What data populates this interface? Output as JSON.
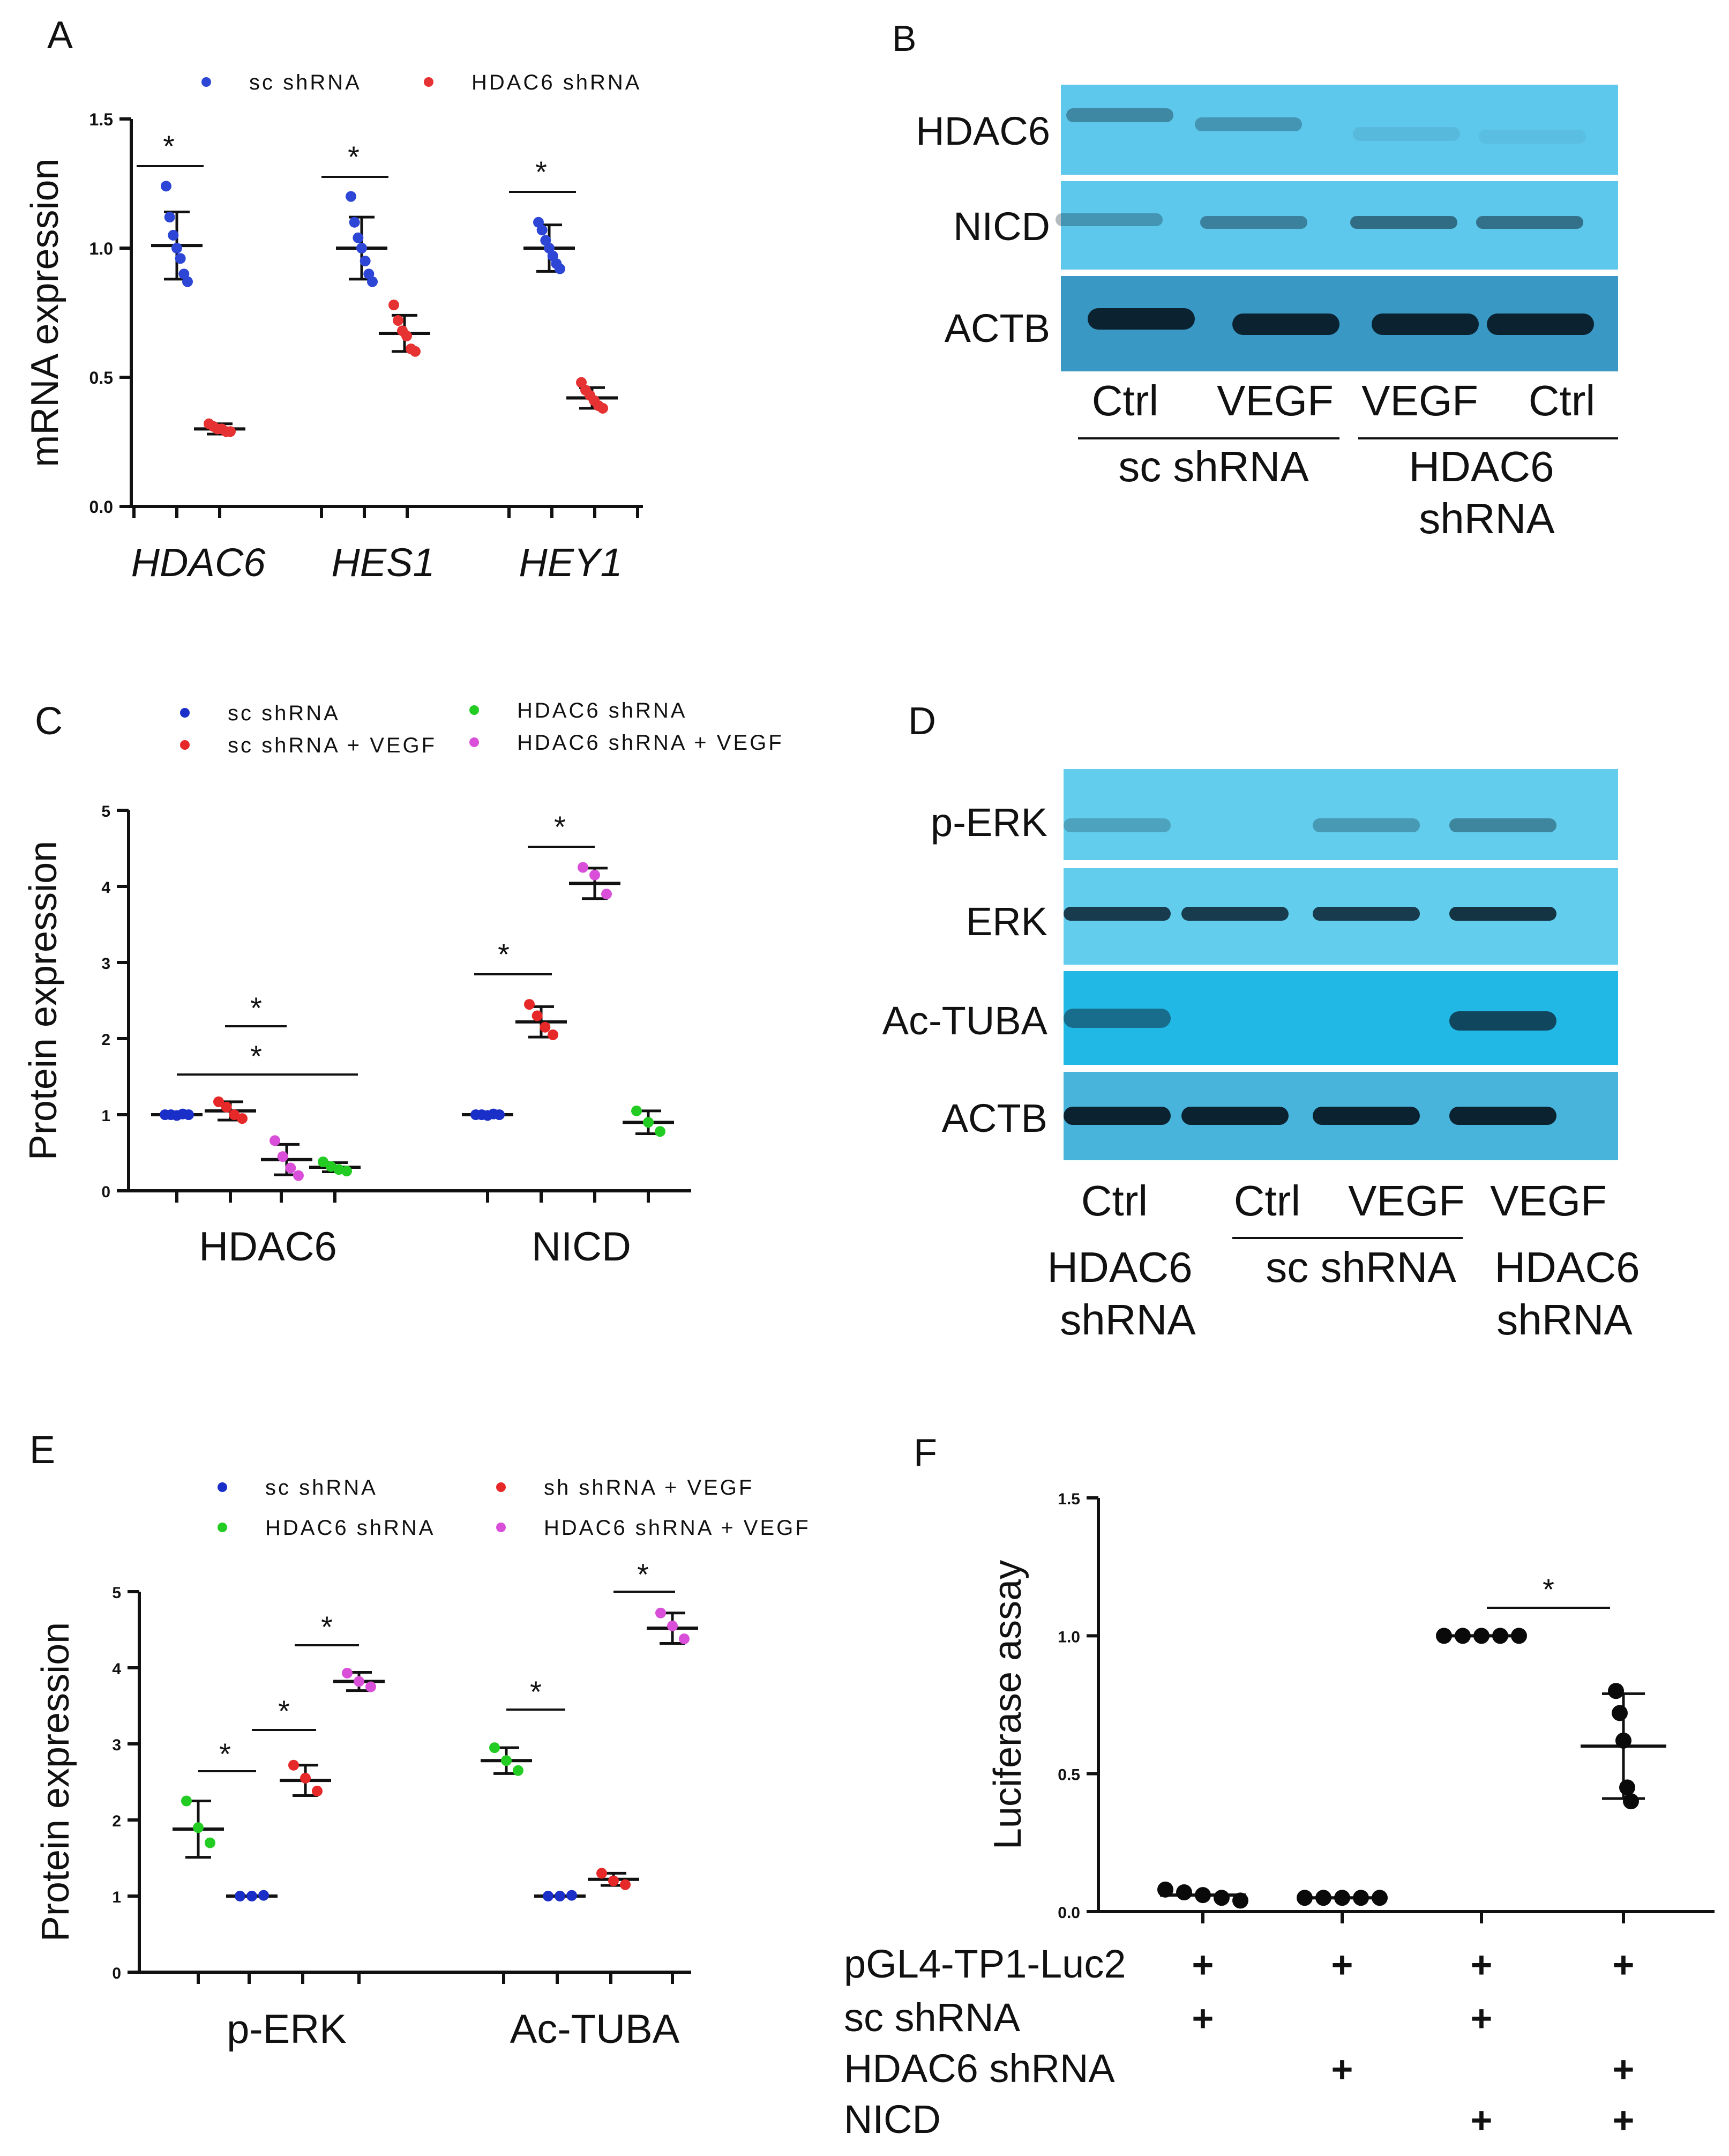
{
  "chart_data": [
    {
      "panel": "A",
      "type": "scatter",
      "ylabel": "mRNA expression",
      "ylim": [
        0,
        1.5
      ],
      "yticks": [
        "0.0",
        "0.5",
        "1.0",
        "1.5"
      ],
      "categories": [
        "HDAC6",
        "HES1",
        "HEY1"
      ],
      "legend": [
        {
          "name": "sc shRNA",
          "color": "#2e46d6"
        },
        {
          "name": "HDAC6 shRNA",
          "color": "#e63232"
        }
      ],
      "series": [
        {
          "name": "sc shRNA",
          "color": "#2e46d6",
          "groups": [
            {
              "category": "HDAC6",
              "mean": 1.01,
              "sd": 0.13,
              "points": [
                1.24,
                1.12,
                1.05,
                1.0,
                0.96,
                0.9,
                0.87
              ]
            },
            {
              "category": "HES1",
              "mean": 1.0,
              "sd": 0.12,
              "points": [
                1.2,
                1.1,
                1.04,
                1.0,
                0.95,
                0.9,
                0.87
              ]
            },
            {
              "category": "HEY1",
              "mean": 1.0,
              "sd": 0.09,
              "points": [
                1.1,
                1.07,
                1.03,
                1.0,
                0.97,
                0.94,
                0.92
              ]
            }
          ]
        },
        {
          "name": "HDAC6 shRNA",
          "color": "#e63232",
          "groups": [
            {
              "category": "HDAC6",
              "mean": 0.3,
              "sd": 0.02,
              "points": [
                0.32,
                0.31,
                0.3,
                0.3,
                0.29,
                0.29
              ]
            },
            {
              "category": "HES1",
              "mean": 0.67,
              "sd": 0.07,
              "points": [
                0.78,
                0.72,
                0.68,
                0.66,
                0.61,
                0.6
              ]
            },
            {
              "category": "HEY1",
              "mean": 0.42,
              "sd": 0.04,
              "points": [
                0.48,
                0.45,
                0.43,
                0.41,
                0.39,
                0.38
              ]
            }
          ]
        }
      ],
      "significance": [
        {
          "category": "HDAC6",
          "label": "*"
        },
        {
          "category": "HES1",
          "label": "*"
        },
        {
          "category": "HEY1",
          "label": "*"
        }
      ]
    },
    {
      "panel": "C",
      "type": "scatter",
      "ylabel": "Protein expression",
      "ylim": [
        0,
        5
      ],
      "yticks": [
        "0",
        "1",
        "2",
        "3",
        "4",
        "5"
      ],
      "categories": [
        "HDAC6",
        "NICD"
      ],
      "legend": [
        {
          "name": "sc shRNA",
          "color": "#1a2ec8"
        },
        {
          "name": "sc shRNA + VEGF",
          "color": "#e62828"
        },
        {
          "name": "HDAC6 shRNA",
          "color": "#22cc22"
        },
        {
          "name": "HDAC6 shRNA + VEGF",
          "color": "#d94fd9"
        }
      ],
      "groups": [
        {
          "category": "HDAC6",
          "series": "sc shRNA",
          "color": "#1a2ec8",
          "mean": 1.0,
          "sd": 0.02,
          "points": [
            1.0,
            1.0,
            0.99,
            1.01,
            1.0
          ]
        },
        {
          "category": "HDAC6",
          "series": "sc shRNA + VEGF",
          "color": "#e62828",
          "mean": 1.05,
          "sd": 0.12,
          "points": [
            1.17,
            1.1,
            1.0,
            0.95
          ]
        },
        {
          "category": "HDAC6",
          "series": "HDAC6 shRNA + VEGF",
          "color": "#d94fd9",
          "mean": 0.41,
          "sd": 0.2,
          "points": [
            0.66,
            0.45,
            0.3,
            0.2
          ]
        },
        {
          "category": "HDAC6",
          "series": "HDAC6 shRNA",
          "color": "#22cc22",
          "mean": 0.31,
          "sd": 0.06,
          "points": [
            0.38,
            0.32,
            0.28,
            0.26
          ]
        },
        {
          "category": "NICD",
          "series": "sc shRNA",
          "color": "#1a2ec8",
          "mean": 1.0,
          "sd": 0.02,
          "points": [
            1.0,
            1.0,
            0.99,
            1.01,
            1.0
          ]
        },
        {
          "category": "NICD",
          "series": "sc shRNA + VEGF",
          "color": "#e62828",
          "mean": 2.22,
          "sd": 0.2,
          "points": [
            2.45,
            2.3,
            2.15,
            2.05
          ]
        },
        {
          "category": "NICD",
          "series": "HDAC6 shRNA + VEGF",
          "color": "#d94fd9",
          "mean": 4.04,
          "sd": 0.2,
          "points": [
            4.25,
            4.15,
            3.9
          ]
        },
        {
          "category": "NICD",
          "series": "HDAC6 shRNA",
          "color": "#22cc22",
          "mean": 0.9,
          "sd": 0.15,
          "points": [
            1.05,
            0.9,
            0.78
          ]
        }
      ],
      "significance": [
        "*",
        "*",
        "*",
        "*"
      ]
    },
    {
      "panel": "E",
      "type": "scatter",
      "ylabel": "Protein expression",
      "ylim": [
        0,
        5
      ],
      "yticks": [
        "0",
        "1",
        "2",
        "3",
        "4",
        "5"
      ],
      "categories": [
        "p-ERK",
        "Ac-TUBA"
      ],
      "legend": [
        {
          "name": "sc shRNA",
          "color": "#1a2ec8"
        },
        {
          "name": "sh shRNA + VEGF",
          "color": "#e62828"
        },
        {
          "name": "HDAC6 shRNA",
          "color": "#22cc22"
        },
        {
          "name": "HDAC6 shRNA + VEGF",
          "color": "#d94fd9"
        }
      ],
      "groups": [
        {
          "category": "p-ERK",
          "series": "HDAC6 shRNA",
          "color": "#22cc22",
          "mean": 1.88,
          "sd": 0.37,
          "points": [
            2.25,
            1.9,
            1.7
          ]
        },
        {
          "category": "p-ERK",
          "series": "sc shRNA",
          "color": "#1a2ec8",
          "mean": 1.0,
          "sd": 0.02,
          "points": [
            1.0,
            1.0,
            1.01
          ]
        },
        {
          "category": "p-ERK",
          "series": "sh shRNA + VEGF",
          "color": "#e62828",
          "mean": 2.52,
          "sd": 0.2,
          "points": [
            2.72,
            2.55,
            2.38
          ]
        },
        {
          "category": "p-ERK",
          "series": "HDAC6 shRNA + VEGF",
          "color": "#d94fd9",
          "mean": 3.82,
          "sd": 0.12,
          "points": [
            3.93,
            3.82,
            3.75
          ]
        },
        {
          "category": "Ac-TUBA",
          "series": "HDAC6 shRNA",
          "color": "#22cc22",
          "mean": 2.78,
          "sd": 0.17,
          "points": [
            2.95,
            2.78,
            2.65
          ]
        },
        {
          "category": "Ac-TUBA",
          "series": "sc shRNA",
          "color": "#1a2ec8",
          "mean": 1.0,
          "sd": 0.02,
          "points": [
            1.0,
            1.0,
            1.01
          ]
        },
        {
          "category": "Ac-TUBA",
          "series": "sh shRNA + VEGF",
          "color": "#e62828",
          "mean": 1.22,
          "sd": 0.08,
          "points": [
            1.3,
            1.2,
            1.15
          ]
        },
        {
          "category": "Ac-TUBA",
          "series": "HDAC6 shRNA + VEGF",
          "color": "#d94fd9",
          "mean": 4.52,
          "sd": 0.2,
          "points": [
            4.72,
            4.55,
            4.38
          ]
        }
      ],
      "significance": [
        "*",
        "*",
        "*",
        "*"
      ]
    },
    {
      "panel": "F",
      "type": "scatter",
      "ylabel": "Luciferase assay",
      "ylim": [
        0,
        1.5
      ],
      "yticks": [
        "0.0",
        "0.5",
        "1.0",
        "1.5"
      ],
      "groups": [
        {
          "mean": 0.06,
          "sd": 0.02,
          "points": [
            0.08,
            0.07,
            0.06,
            0.05,
            0.04
          ]
        },
        {
          "mean": 0.05,
          "sd": 0.005,
          "points": [
            0.05,
            0.05,
            0.05,
            0.05,
            0.05
          ]
        },
        {
          "mean": 1.0,
          "sd": 0.0,
          "points": [
            1.0,
            1.0,
            1.0,
            1.0,
            1.0
          ]
        },
        {
          "mean": 0.6,
          "sd": 0.19,
          "points": [
            0.8,
            0.72,
            0.62,
            0.45,
            0.4
          ]
        }
      ],
      "significance": [
        "*"
      ],
      "condition_table": {
        "rows": [
          {
            "label": "pGL4-TP1-Luc2",
            "marks": [
              "+",
              "+",
              "+",
              "+"
            ]
          },
          {
            "label": "sc shRNA",
            "marks": [
              "+",
              "",
              "+",
              ""
            ]
          },
          {
            "label": "HDAC6 shRNA",
            "marks": [
              "",
              "+",
              "",
              "+"
            ]
          },
          {
            "label": "NICD",
            "marks": [
              "",
              "",
              "+",
              "+"
            ]
          }
        ]
      }
    }
  ],
  "panels": {
    "a": {
      "letter": "A"
    },
    "b": {
      "letter": "B",
      "band_labels": [
        "HDAC6",
        "NICD",
        "ACTB"
      ],
      "lane_labels": [
        "Ctrl",
        "VEGF",
        "VEGF",
        "Ctrl"
      ],
      "groups": [
        {
          "line1": "sc shRNA",
          "line2": ""
        },
        {
          "line1": "HDAC6",
          "line2": "shRNA"
        }
      ]
    },
    "c": {
      "letter": "C"
    },
    "d": {
      "letter": "D",
      "band_labels": [
        "p-ERK",
        "ERK",
        "Ac-TUBA",
        "ACTB"
      ],
      "lane_labels": [
        "Ctrl",
        "Ctrl",
        "VEGF",
        "VEGF"
      ],
      "groups": [
        {
          "line1": "HDAC6",
          "line2": "shRNA"
        },
        {
          "line1": "sc shRNA",
          "line2": ""
        },
        {
          "line1": "HDAC6",
          "line2": "shRNA"
        }
      ]
    },
    "e": {
      "letter": "E"
    },
    "f": {
      "letter": "F"
    }
  },
  "colors": {
    "blot_bg_b": "#5ec7ec",
    "blot_bg_d": "#63cdee",
    "blot_bg_actb": "#3a98c4",
    "blot_bg_actb_d": "#48b4dc",
    "blot_bg_ac_tuba": "#22b8e6",
    "band_dark": "#0b2230"
  }
}
